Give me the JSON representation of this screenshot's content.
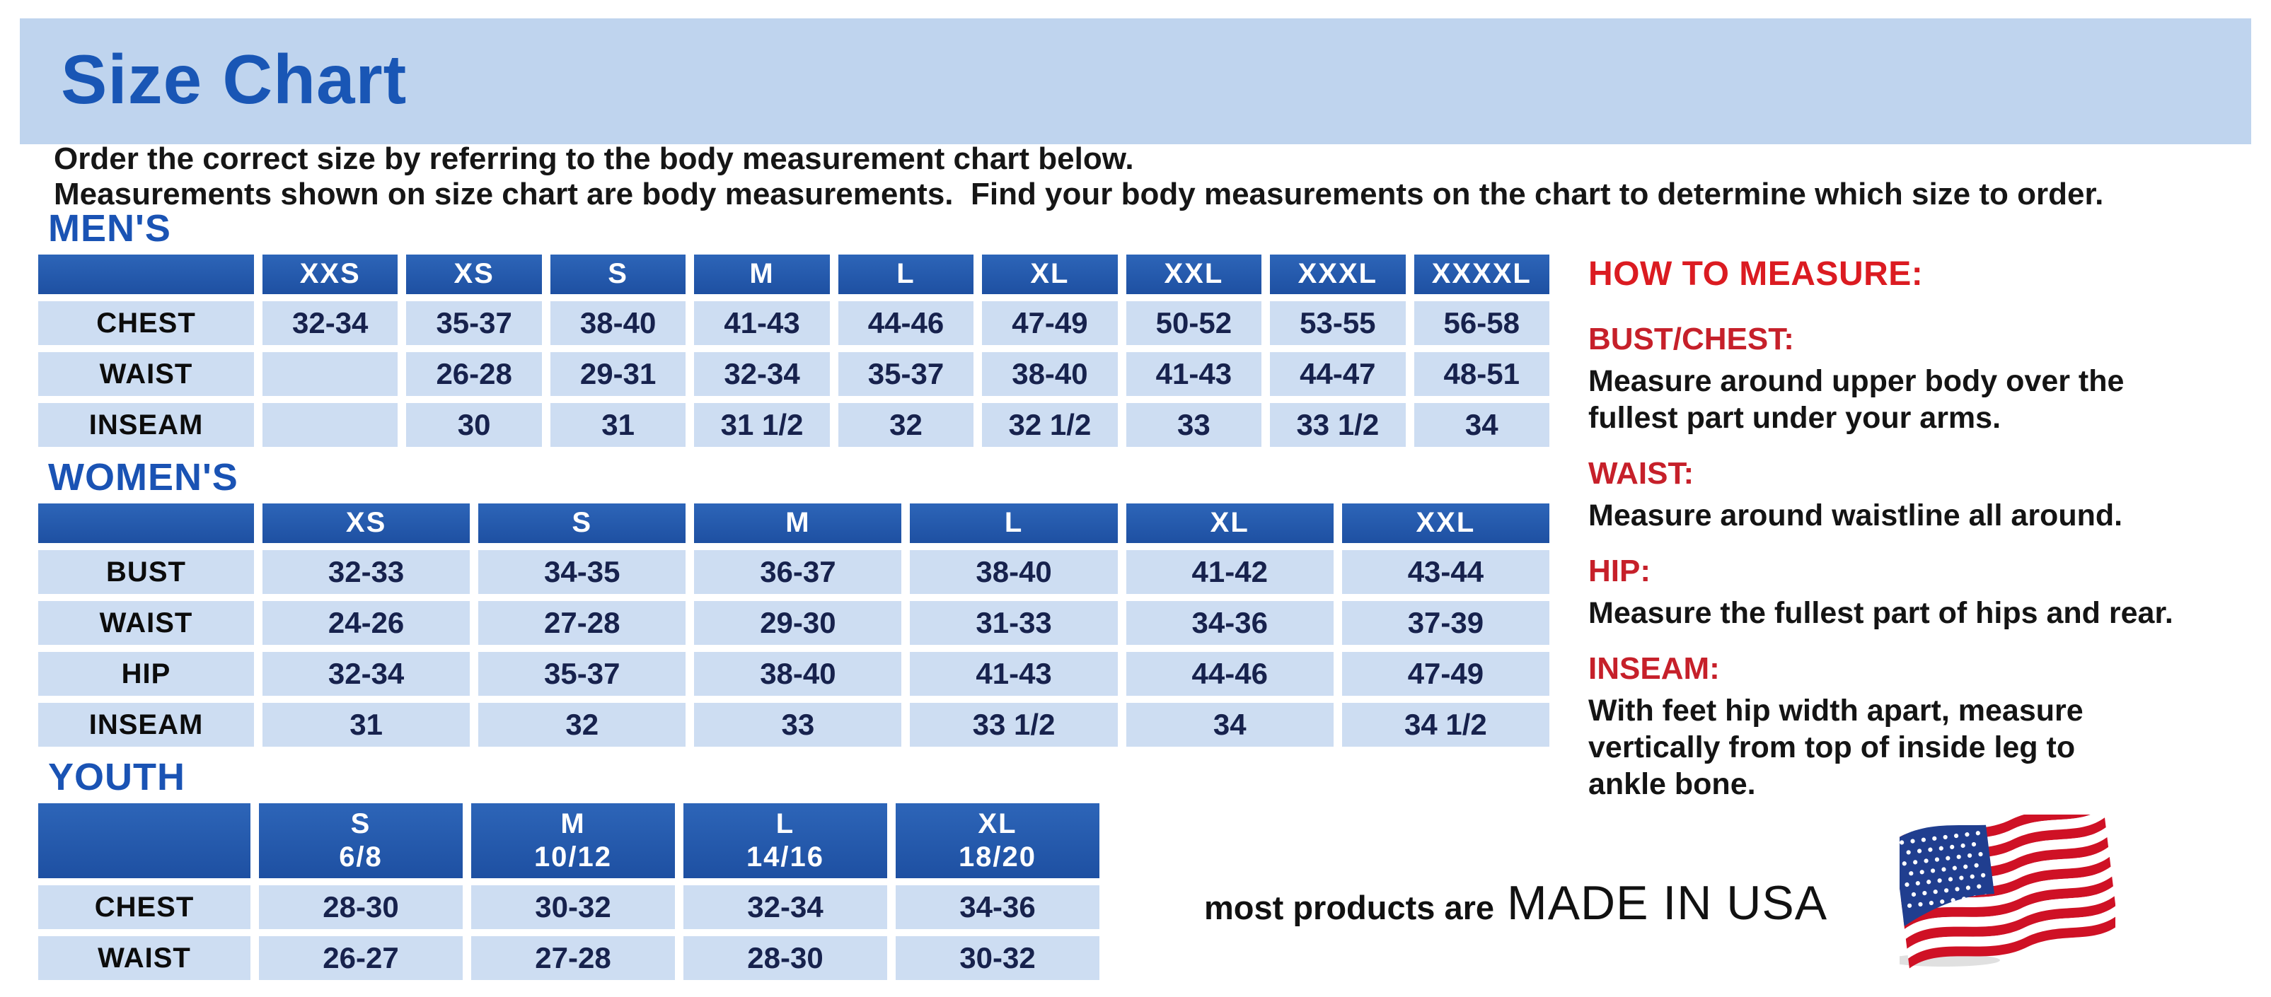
{
  "page": {
    "title": "Size Chart"
  },
  "intro": {
    "line1": "Order the correct size by referring to the body measurement chart below.",
    "line2": "Measurements shown on size chart are body measurements.  Find your body measurements on the chart to determine which size to order."
  },
  "tables": {
    "mens": {
      "heading": "MEN'S",
      "headers": [
        "XXS",
        "XS",
        "S",
        "M",
        "L",
        "XL",
        "XXL",
        "XXXL",
        "XXXXL"
      ],
      "rows": [
        {
          "label": "CHEST",
          "values": [
            "32-34",
            "35-37",
            "38-40",
            "41-43",
            "44-46",
            "47-49",
            "50-52",
            "53-55",
            "56-58"
          ]
        },
        {
          "label": "WAIST",
          "values": [
            "",
            "26-28",
            "29-31",
            "32-34",
            "35-37",
            "38-40",
            "41-43",
            "44-47",
            "48-51"
          ]
        },
        {
          "label": "INSEAM",
          "values": [
            "",
            "30",
            "31",
            "31 1/2",
            "32",
            "32 1/2",
            "33",
            "33 1/2",
            "34"
          ]
        }
      ]
    },
    "womens": {
      "heading": "WOMEN'S",
      "headers": [
        "XS",
        "S",
        "M",
        "L",
        "XL",
        "XXL"
      ],
      "rows": [
        {
          "label": "BUST",
          "values": [
            "32-33",
            "34-35",
            "36-37",
            "38-40",
            "41-42",
            "43-44"
          ]
        },
        {
          "label": "WAIST",
          "values": [
            "24-26",
            "27-28",
            "29-30",
            "31-33",
            "34-36",
            "37-39"
          ]
        },
        {
          "label": "HIP",
          "values": [
            "32-34",
            "35-37",
            "38-40",
            "41-43",
            "44-46",
            "47-49"
          ]
        },
        {
          "label": "INSEAM",
          "values": [
            "31",
            "32",
            "33",
            "33 1/2",
            "34",
            "34 1/2"
          ]
        }
      ]
    },
    "youth": {
      "heading": "YOUTH",
      "headers": [
        "S\n6/8",
        "M\n10/12",
        "L\n14/16",
        "XL\n18/20"
      ],
      "rows": [
        {
          "label": "CHEST",
          "values": [
            "28-30",
            "30-32",
            "32-34",
            "34-36"
          ]
        },
        {
          "label": "WAIST",
          "values": [
            "26-27",
            "27-28",
            "28-30",
            "30-32"
          ]
        }
      ]
    }
  },
  "how_to_measure": {
    "heading": "HOW TO MEASURE:",
    "items": [
      {
        "label": "BUST/CHEST:",
        "text": "Measure around upper body over the\nfullest part under your arms."
      },
      {
        "label": "WAIST:",
        "text": "Measure around waistline all around."
      },
      {
        "label": "HIP:",
        "text": "Measure the fullest part of hips and rear."
      },
      {
        "label": "INSEAM:",
        "text": "With feet hip width apart, measure\nvertically from top of inside leg to\nankle bone."
      }
    ]
  },
  "footer": {
    "prefix": "most products are",
    "emphasis": "MADE IN USA",
    "flag_icon": "usa-flag-icon"
  },
  "colors": {
    "banner_bg": "#bfd4ee",
    "title_blue": "#1956b5",
    "table_header_blue": "#2156a6",
    "table_cell_bg": "#cdddf2",
    "value_text_navy": "#17224d",
    "red_heading": "#db1b21",
    "red_label": "#c6202a",
    "flag_red": "#cf1125",
    "flag_blue": "#203e8f"
  }
}
